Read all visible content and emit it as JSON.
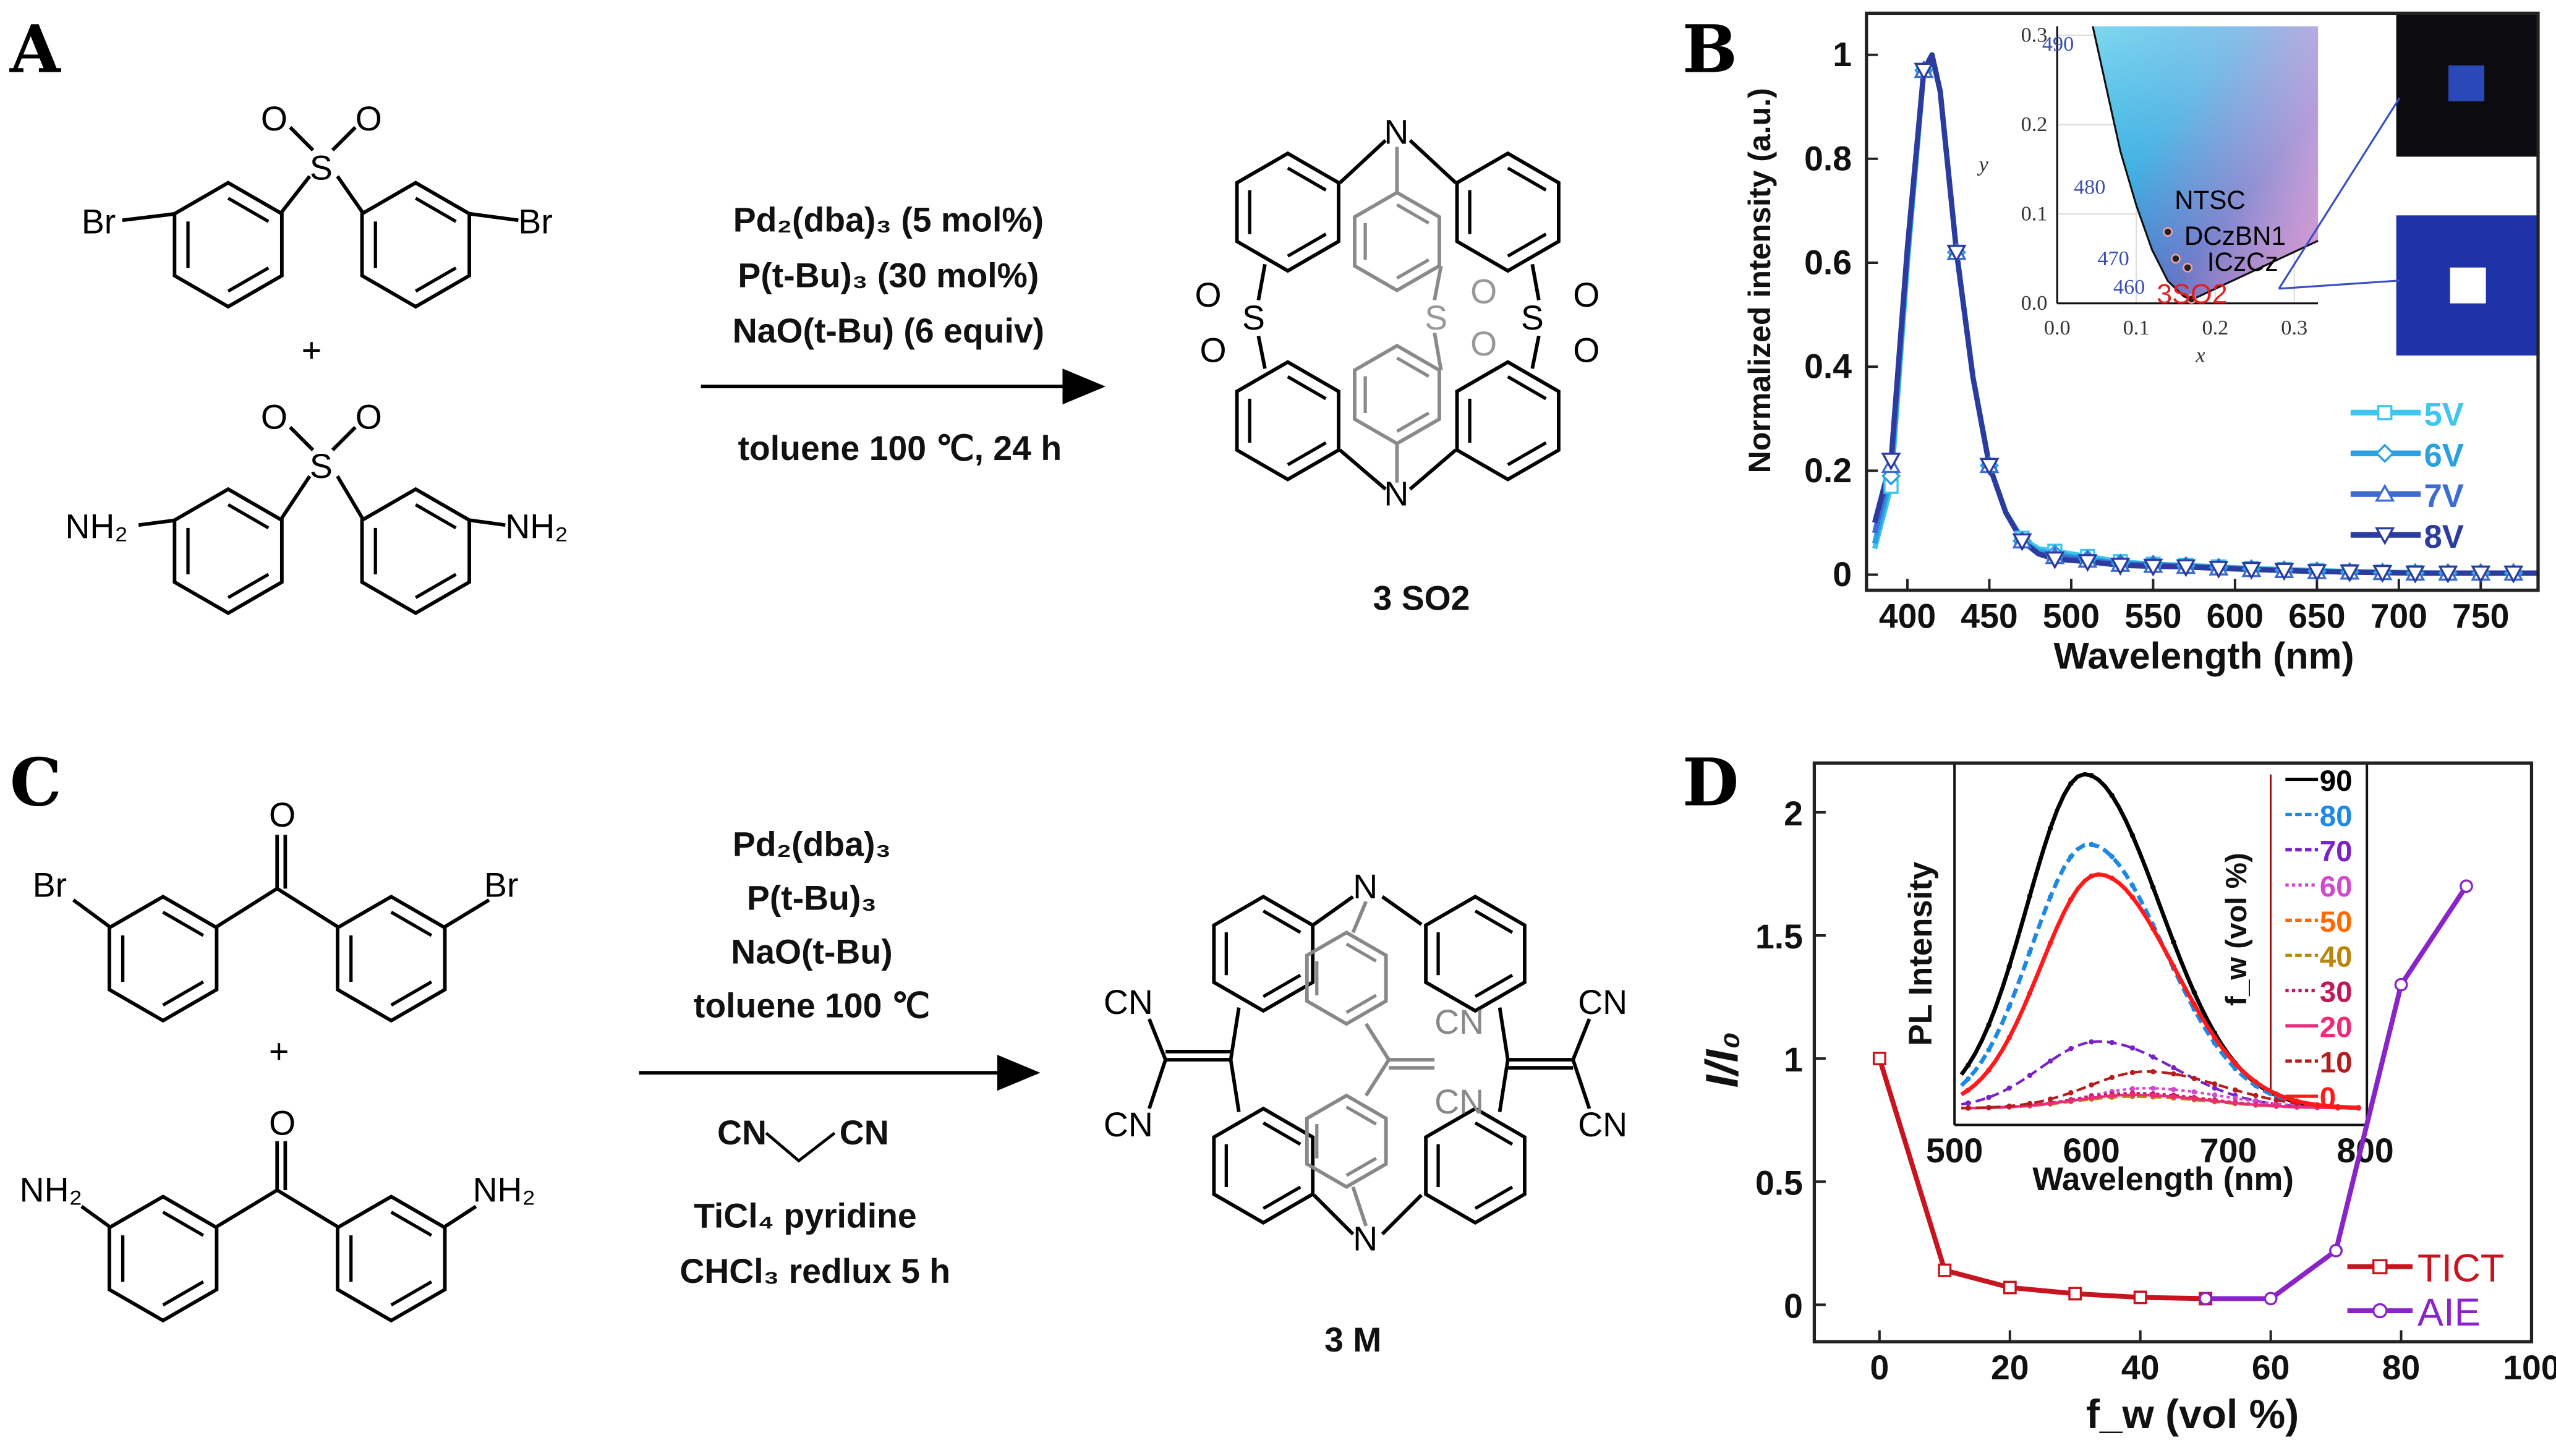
{
  "panels": {
    "A": {
      "label": "A",
      "reactant1": {
        "left_sub": "Br",
        "right_sub": "Br",
        "center": "S",
        "o1": "O",
        "o2": "O"
      },
      "plus": "+",
      "reactant2": {
        "left_sub": "NH₂",
        "right_sub": "NH₂",
        "center": "S",
        "o1": "O",
        "o2": "O"
      },
      "conditions": [
        "Pd₂(dba)₃ (5 mol%)",
        "P(t-Bu)₃ (30 mol%)",
        "NaO(t-Bu) (6 equiv)"
      ],
      "conditions_below": "toluene 100 ℃, 24 h",
      "product": {
        "n_top": "N",
        "n_bottom": "N",
        "s": "S",
        "o": "O",
        "name": "3 SO2"
      }
    },
    "C": {
      "label": "C",
      "reactant1": {
        "left_sub": "Br",
        "right_sub": "Br",
        "o": "O"
      },
      "plus": "+",
      "reactant2": {
        "left_sub": "NH₂",
        "right_sub": "NH₂",
        "o": "O"
      },
      "conditions": [
        "Pd₂(dba)₃",
        "P(t-Bu)₃",
        "NaO(t-Bu)",
        "toluene 100 ℃"
      ],
      "malononitrile": {
        "left": "CN",
        "right": "CN"
      },
      "conditions_below": [
        "TiCl₄ pyridine",
        "CHCl₃ redlux 5 h"
      ],
      "product": {
        "n_top": "N",
        "n_bottom": "N",
        "cn": "CN",
        "name": "3 M"
      }
    },
    "B": {
      "label": "B"
    },
    "D": {
      "label": "D"
    }
  },
  "chart_data": [
    {
      "panel": "B",
      "type": "line",
      "xlabel": "Wavelength (nm)",
      "ylabel": "Normalized intensity (a.u.)",
      "xlim": [
        375,
        785
      ],
      "ylim": [
        -0.03,
        1.08
      ],
      "xticks": [
        "400",
        "450",
        "500",
        "550",
        "600",
        "650",
        "700",
        "750"
      ],
      "yticks": [
        "0",
        "0.2",
        "0.4",
        "0.6",
        "0.8",
        "1"
      ],
      "legend_position": "right",
      "x": [
        380,
        390,
        400,
        410,
        415,
        420,
        430,
        440,
        450,
        460,
        470,
        480,
        490,
        510,
        530,
        550,
        570,
        590,
        610,
        630,
        650,
        670,
        690,
        710,
        730,
        750,
        770,
        785
      ],
      "series": [
        {
          "name": "5V",
          "color": "#3ec5f0",
          "marker": "square",
          "values": [
            0.05,
            0.17,
            0.6,
            0.97,
            1.0,
            0.93,
            0.62,
            0.38,
            0.21,
            0.12,
            0.07,
            0.05,
            0.045,
            0.035,
            0.025,
            0.02,
            0.018,
            0.015,
            0.012,
            0.01,
            0.008,
            0.006,
            0.005,
            0.004,
            0.003,
            0.003,
            0.003,
            0.003
          ]
        },
        {
          "name": "6V",
          "color": "#2aa0e0",
          "marker": "diamond",
          "values": [
            0.06,
            0.19,
            0.61,
            0.97,
            1.0,
            0.93,
            0.62,
            0.38,
            0.21,
            0.12,
            0.065,
            0.045,
            0.04,
            0.03,
            0.022,
            0.02,
            0.017,
            0.014,
            0.011,
            0.009,
            0.007,
            0.005,
            0.004,
            0.003,
            0.003,
            0.003,
            0.003,
            0.003
          ]
        },
        {
          "name": "7V",
          "color": "#3d6bd0",
          "marker": "triangle-up",
          "values": [
            0.08,
            0.21,
            0.62,
            0.97,
            1.0,
            0.93,
            0.62,
            0.38,
            0.21,
            0.12,
            0.065,
            0.04,
            0.035,
            0.028,
            0.02,
            0.018,
            0.016,
            0.013,
            0.01,
            0.008,
            0.006,
            0.005,
            0.004,
            0.003,
            0.003,
            0.003,
            0.003,
            0.003
          ]
        },
        {
          "name": "8V",
          "color": "#2b3c9e",
          "marker": "triangle-down",
          "values": [
            0.1,
            0.22,
            0.63,
            0.97,
            1.0,
            0.93,
            0.62,
            0.38,
            0.21,
            0.12,
            0.065,
            0.04,
            0.03,
            0.025,
            0.018,
            0.016,
            0.015,
            0.012,
            0.01,
            0.008,
            0.006,
            0.005,
            0.004,
            0.003,
            0.003,
            0.003,
            0.003,
            0.003
          ]
        }
      ],
      "inset": {
        "type": "scatter",
        "xlabel": "x",
        "ylabel": "y",
        "xlim": [
          0,
          0.33
        ],
        "ylim": [
          0,
          0.31
        ],
        "xticks": [
          "0.0",
          "0.1",
          "0.2",
          "0.3"
        ],
        "yticks": [
          "0.0",
          "0.1",
          "0.2",
          "0.3"
        ],
        "wavelength_labels": [
          {
            "text": "490",
            "x": 0.05,
            "y": 0.29
          },
          {
            "text": "480",
            "x": 0.09,
            "y": 0.13
          },
          {
            "text": "470",
            "x": 0.12,
            "y": 0.05
          },
          {
            "text": "460",
            "x": 0.14,
            "y": 0.018
          }
        ],
        "points": [
          {
            "name": "NTSC",
            "x": 0.14,
            "y": 0.08
          },
          {
            "name": "DCzBN1",
            "x": 0.15,
            "y": 0.05
          },
          {
            "name": "ICzCz",
            "x": 0.165,
            "y": 0.04
          },
          {
            "name": "3SO2",
            "x": 0.17,
            "y": 0.005
          }
        ],
        "point_label_color": "#000000",
        "highlight_label_color": "#e02020"
      }
    },
    {
      "panel": "D",
      "type": "line",
      "xlabel": "f_w (vol %)",
      "ylabel": "I/I₀",
      "xlim": [
        -10,
        100
      ],
      "ylim": [
        -0.15,
        2.2
      ],
      "xticks": [
        "0",
        "20",
        "40",
        "60",
        "80",
        "100"
      ],
      "yticks": [
        "0",
        "0.5",
        "1",
        "1.5",
        "2"
      ],
      "legend_position": "bottom-right",
      "series": [
        {
          "name": "TICT",
          "color": "#c8141e",
          "x": [
            0,
            10,
            20,
            30,
            40,
            50
          ],
          "values": [
            1.0,
            0.14,
            0.07,
            0.045,
            0.03,
            0.025
          ]
        },
        {
          "name": "AIE",
          "color": "#8a24c8",
          "x": [
            50,
            60,
            70,
            80,
            90
          ],
          "values": [
            0.025,
            0.025,
            0.22,
            1.3,
            1.7
          ]
        }
      ],
      "inset": {
        "type": "line",
        "xlabel": "Wavelength (nm)",
        "ylabel": "PL Intensity",
        "xlim": [
          500,
          800
        ],
        "xticks": [
          "500",
          "600",
          "700",
          "800"
        ],
        "legend_title": "f_w (vol %)",
        "series": [
          {
            "name": "90",
            "color": "#000000",
            "peak_nm": 595,
            "peak": 1.0,
            "dash": "solid"
          },
          {
            "name": "80",
            "color": "#1e88e5",
            "peak_nm": 598,
            "peak": 0.79,
            "dash": "dashed"
          },
          {
            "name": "70",
            "color": "#7a22c8",
            "peak_nm": 605,
            "peak": 0.2,
            "dash": "dashed"
          },
          {
            "name": "60",
            "color": "#d04ad0",
            "peak_nm": 640,
            "peak": 0.06,
            "dash": "dotted"
          },
          {
            "name": "50",
            "color": "#ff6a00",
            "peak_nm": 630,
            "peak": 0.04,
            "dash": "dashed"
          },
          {
            "name": "40",
            "color": "#b8860b",
            "peak_nm": 630,
            "peak": 0.035,
            "dash": "dashed"
          },
          {
            "name": "30",
            "color": "#c2185b",
            "peak_nm": 630,
            "peak": 0.045,
            "dash": "dotted"
          },
          {
            "name": "20",
            "color": "#ee2a7b",
            "peak_nm": 630,
            "peak": 0.04,
            "dash": "solid"
          },
          {
            "name": "10",
            "color": "#b71c1c",
            "peak_nm": 640,
            "peak": 0.11,
            "dash": "dashed"
          },
          {
            "name": "0",
            "color": "#ff1a1a",
            "peak_nm": 605,
            "peak": 0.7,
            "dash": "solid"
          }
        ]
      }
    }
  ]
}
